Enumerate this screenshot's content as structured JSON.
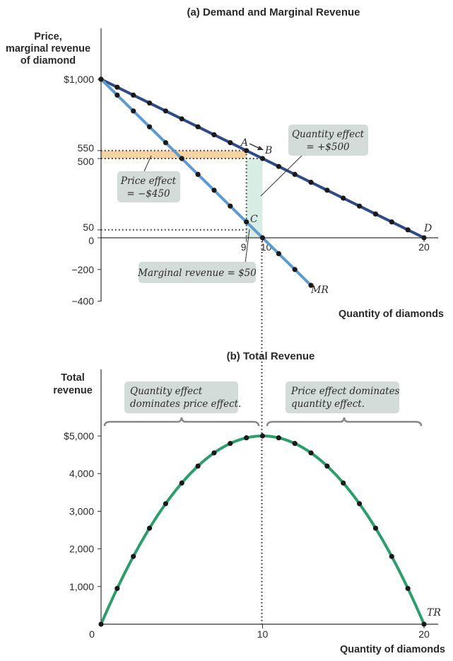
{
  "chart_data": [
    {
      "type": "line",
      "title": "(a) Demand and Marginal Revenue",
      "ylabel": "Price,\nmarginal revenue\nof diamond",
      "xlabel": "Quantity of diamonds",
      "ylim": [
        -400,
        1000
      ],
      "xlim": [
        0,
        20
      ],
      "y_ticks": [
        "$1,000",
        "550",
        "500",
        "50",
        "0",
        "−200",
        "−400"
      ],
      "x_ticks": [
        "9",
        "10",
        "20"
      ],
      "series": [
        {
          "name": "D",
          "color": "#2e4a8a",
          "x": [
            0,
            1,
            2,
            3,
            4,
            5,
            6,
            7,
            8,
            9,
            10,
            11,
            12,
            13,
            14,
            15,
            16,
            17,
            18,
            19,
            20
          ],
          "y": [
            1000,
            950,
            900,
            850,
            800,
            750,
            700,
            650,
            600,
            550,
            500,
            450,
            400,
            350,
            300,
            250,
            200,
            150,
            100,
            50,
            0
          ]
        },
        {
          "name": "MR",
          "color": "#5b9bd5",
          "x": [
            0,
            1,
            2,
            3,
            4,
            5,
            6,
            7,
            8,
            9,
            10,
            11,
            12,
            13
          ],
          "y": [
            1000,
            900,
            800,
            700,
            600,
            500,
            400,
            300,
            200,
            100,
            0,
            -100,
            -200,
            -300
          ]
        }
      ],
      "points": [
        "A",
        "B",
        "C"
      ],
      "annotations": {
        "quantity_effect": [
          "Quantity effect",
          "= +$500"
        ],
        "price_effect": [
          "Price effect",
          "= −$450"
        ],
        "marginal_revenue": "Marginal revenue = $50"
      },
      "colors": {
        "price_effect": "#f8d3a0",
        "quantity_effect": "#d8ede4",
        "callout": "#d3dcd8"
      }
    },
    {
      "type": "line",
      "title": "(b) Total Revenue",
      "ylabel": "Total\nrevenue",
      "xlabel": "Quantity of diamonds",
      "ylim": [
        0,
        5000
      ],
      "xlim": [
        0,
        20
      ],
      "y_ticks": [
        "$5,000",
        "4,000",
        "3,000",
        "2,000",
        "1,000"
      ],
      "x_ticks": [
        "0",
        "10",
        "20"
      ],
      "series": [
        {
          "name": "TR",
          "color": "#27a06a",
          "x": [
            0,
            1,
            2,
            3,
            4,
            5,
            6,
            7,
            8,
            9,
            10,
            11,
            12,
            13,
            14,
            15,
            16,
            17,
            18,
            19,
            20
          ],
          "y": [
            0,
            950,
            1800,
            2550,
            3200,
            3750,
            4200,
            4550,
            4800,
            4950,
            5000,
            4950,
            4800,
            4550,
            4200,
            3750,
            3200,
            2550,
            1800,
            950,
            0
          ]
        }
      ],
      "annotations": {
        "left": [
          "Quantity effect",
          "dominates price effect."
        ],
        "right": [
          "Price effect dominates",
          "quantity effect."
        ]
      }
    }
  ]
}
